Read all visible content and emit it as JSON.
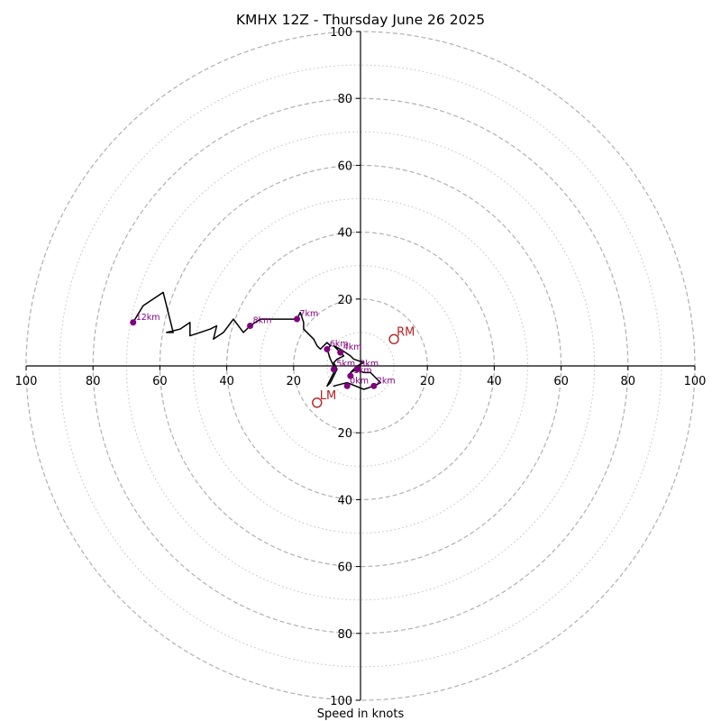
{
  "chart_data": {
    "type": "line",
    "title": "KMHX 12Z - Thursday June 26 2025",
    "xlabel": "Speed in knots",
    "rings_major": [
      20,
      40,
      60,
      80,
      100
    ],
    "rings_minor": [
      10,
      30,
      50,
      70,
      90
    ],
    "xlim": [
      -100,
      100
    ],
    "ylim": [
      -100,
      100
    ],
    "tick_values": [
      20,
      40,
      60,
      80,
      100
    ],
    "grid": true,
    "colors": {
      "trace": "#000000",
      "height_marker": "#800080",
      "motion": "#b22222",
      "grid": "#b0b0b0"
    },
    "hodograph_trace": [
      [
        -4,
        -5
      ],
      [
        -8,
        -6
      ],
      [
        -4,
        -5
      ],
      [
        1,
        -7
      ],
      [
        4,
        -6
      ],
      [
        6,
        -5
      ],
      [
        3,
        -2
      ],
      [
        1,
        -2
      ],
      [
        -1,
        -1
      ],
      [
        -3,
        -2
      ],
      [
        -2,
        -1
      ],
      [
        -1,
        0
      ],
      [
        1,
        1
      ],
      [
        -2,
        2
      ],
      [
        -3,
        3
      ],
      [
        -6,
        5
      ],
      [
        -8,
        6
      ],
      [
        -6,
        4
      ],
      [
        -5,
        3
      ],
      [
        -7,
        2
      ],
      [
        -8,
        1
      ],
      [
        -7,
        -1
      ],
      [
        -9,
        -5
      ],
      [
        -10,
        -6
      ],
      [
        -8,
        -2
      ],
      [
        -8,
        0
      ],
      [
        -9,
        2
      ],
      [
        -10,
        5
      ],
      [
        -9,
        6
      ],
      [
        -10,
        7
      ],
      [
        -12,
        5
      ],
      [
        -13,
        6
      ],
      [
        -14,
        8
      ],
      [
        -17,
        11
      ],
      [
        -17,
        13
      ],
      [
        -18,
        16
      ],
      [
        -19,
        14
      ],
      [
        -24,
        14
      ],
      [
        -30,
        14
      ],
      [
        -33,
        12
      ],
      [
        -35,
        10
      ],
      [
        -38,
        14
      ],
      [
        -41,
        10
      ],
      [
        -44,
        8
      ],
      [
        -43,
        12
      ],
      [
        -45,
        11
      ],
      [
        -48,
        10
      ],
      [
        -51,
        9
      ],
      [
        -51,
        13
      ],
      [
        -54,
        11
      ],
      [
        -58,
        10
      ],
      [
        -56,
        10
      ],
      [
        -59,
        22
      ],
      [
        -65,
        18
      ],
      [
        -68,
        13
      ]
    ],
    "height_markers": [
      {
        "label": "0km",
        "u": -4,
        "v": -6
      },
      {
        "label": "1km",
        "u": -3,
        "v": -3
      },
      {
        "label": "2km",
        "u": 4,
        "v": -6
      },
      {
        "label": "3km",
        "u": -1,
        "v": -1
      },
      {
        "label": "4km",
        "u": -6,
        "v": 4
      },
      {
        "label": "5km",
        "u": -8,
        "v": -1
      },
      {
        "label": "6km",
        "u": -10,
        "v": 5
      },
      {
        "label": "7km",
        "u": -19,
        "v": 14
      },
      {
        "label": "8km",
        "u": -33,
        "v": 12
      },
      {
        "label": "12km",
        "u": -68,
        "v": 13
      }
    ],
    "storm_motion": [
      {
        "label": "RM",
        "u": 10,
        "v": 8
      },
      {
        "label": "LM",
        "u": -13,
        "v": -11
      }
    ]
  }
}
